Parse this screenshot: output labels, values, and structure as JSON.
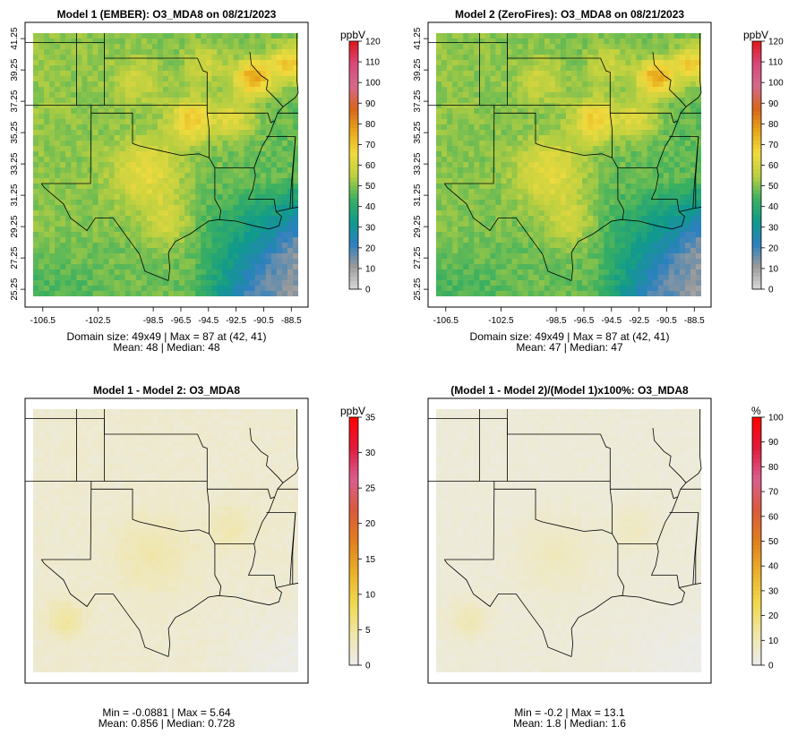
{
  "chart_data": [
    {
      "type": "heatmap",
      "title": "Model 1 (EMBER): O3_MDA8 on 08/21/2023",
      "unit": "ppbV",
      "colorbar_ticks": [
        "120",
        "110",
        "100",
        "90",
        "80",
        "70",
        "60",
        "50",
        "40",
        "30",
        "20",
        "10",
        "0"
      ],
      "x_ticks": [
        "-106.5",
        "-102.5",
        "-98.5",
        "-96.5",
        "-94.5",
        "-92.5",
        "-90.5",
        "-88.5"
      ],
      "y_ticks": [
        "41.25",
        "39.25",
        "37.25",
        "35.25",
        "33.25",
        "31.25",
        "29.25",
        "27.25",
        "25.25"
      ],
      "stats": [
        "Domain size: 49x49 | Max = 87 at (42, 41)",
        "Mean: 48 |  Median: 48"
      ],
      "field": "absolute",
      "mean": 48,
      "median": 48,
      "max": 87
    },
    {
      "type": "heatmap",
      "title": "Model 2 (ZeroFires): O3_MDA8 on 08/21/2023",
      "unit": "ppbV",
      "colorbar_ticks": [
        "120",
        "110",
        "100",
        "90",
        "80",
        "70",
        "60",
        "50",
        "40",
        "30",
        "20",
        "10",
        "0"
      ],
      "x_ticks": [
        "-106.5",
        "-102.5",
        "-98.5",
        "-96.5",
        "-94.5",
        "-92.5",
        "-90.5",
        "-88.5"
      ],
      "y_ticks": [
        "41.25",
        "39.25",
        "37.25",
        "35.25",
        "33.25",
        "31.25",
        "29.25",
        "27.25",
        "25.25"
      ],
      "stats": [
        "Domain size: 49x49 | Max = 87 at (42, 41)",
        "Mean: 47 |  Median: 47"
      ],
      "field": "absolute",
      "mean": 47,
      "median": 47,
      "max": 87
    },
    {
      "type": "heatmap",
      "title": "Model 1 - Model 2: O3_MDA8",
      "unit": "ppbV",
      "colorbar_ticks": [
        "35",
        "30",
        "25",
        "20",
        "15",
        "10",
        "5",
        "0"
      ],
      "x_ticks": [],
      "y_ticks": [],
      "stats": [
        "Min = -0.0881 | Max = 5.64",
        "Mean: 0.856 |  Median: 0.728"
      ],
      "field": "difference",
      "mean": 0.856,
      "median": 0.728,
      "max": 5.64
    },
    {
      "type": "heatmap",
      "title": "(Model 1 - Model 2)/(Model 1)x100%: O3_MDA8",
      "unit": "%",
      "colorbar_ticks": [
        "100",
        "90",
        "80",
        "70",
        "60",
        "50",
        "40",
        "30",
        "20",
        "10",
        "0"
      ],
      "x_ticks": [],
      "y_ticks": [],
      "stats": [
        "Min = -0.2 | Max = 13.1",
        "Mean: 1.8 |  Median: 1.6"
      ],
      "field": "difference",
      "mean": 1.8,
      "median": 1.6,
      "max": 13.1
    }
  ],
  "colors": {
    "absolute_scale": [
      "#d9d9d9",
      "#9a9a9a",
      "#2c80c0",
      "#0f9a8c",
      "#3cb060",
      "#b9cf40",
      "#f1db3e",
      "#e7a71a",
      "#d8641b",
      "#d46a8c",
      "#d8487a",
      "#e01616"
    ],
    "difference_scale": [
      "#ececec",
      "#f0e6a8",
      "#f0d84e",
      "#e9b02a",
      "#e0801e",
      "#d95a3c",
      "#d95e8e",
      "#e01c3c",
      "#ff0000"
    ],
    "map_background": "#e8e8e8",
    "border": "#000000"
  }
}
